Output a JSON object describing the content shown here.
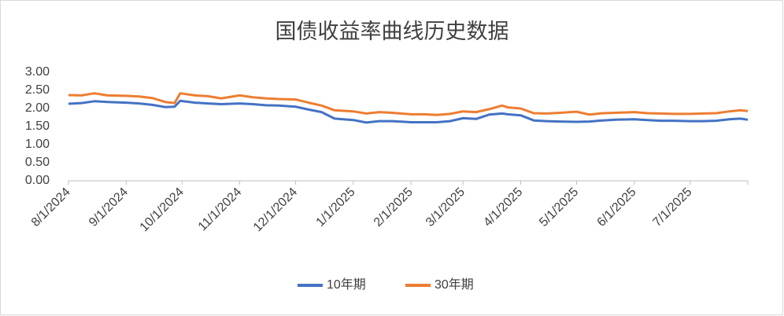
{
  "chart_data": {
    "type": "line",
    "title": "国债收益率曲线历史数据",
    "x": [
      "8/1/2024",
      "8/8/2024",
      "8/15/2024",
      "8/22/2024",
      "9/1/2024",
      "9/8/2024",
      "9/15/2024",
      "9/22/2024",
      "9/27/2024",
      "9/30/2024",
      "10/8/2024",
      "10/15/2024",
      "10/22/2024",
      "11/1/2024",
      "11/8/2024",
      "11/15/2024",
      "11/22/2024",
      "12/1/2024",
      "12/8/2024",
      "12/15/2024",
      "12/22/2024",
      "1/1/2025",
      "1/8/2025",
      "1/15/2025",
      "1/22/2025",
      "2/1/2025",
      "2/8/2025",
      "2/15/2025",
      "2/22/2025",
      "3/1/2025",
      "3/8/2025",
      "3/15/2025",
      "3/22/2025",
      "3/25/2025",
      "4/1/2025",
      "4/8/2025",
      "4/15/2025",
      "4/22/2025",
      "5/1/2025",
      "5/8/2025",
      "5/15/2025",
      "5/22/2025",
      "6/1/2025",
      "6/8/2025",
      "6/15/2025",
      "6/22/2025",
      "7/1/2025",
      "7/8/2025",
      "7/15/2025",
      "7/22/2025",
      "7/28/2025",
      "8/1/2025"
    ],
    "series": [
      {
        "name": "10年期",
        "color": "#4472c4",
        "values": [
          2.13,
          2.15,
          2.2,
          2.18,
          2.16,
          2.14,
          2.1,
          2.04,
          2.05,
          2.21,
          2.16,
          2.14,
          2.12,
          2.14,
          2.12,
          2.09,
          2.08,
          2.05,
          1.97,
          1.9,
          1.72,
          1.68,
          1.61,
          1.65,
          1.65,
          1.62,
          1.62,
          1.62,
          1.65,
          1.73,
          1.71,
          1.83,
          1.86,
          1.84,
          1.81,
          1.67,
          1.65,
          1.64,
          1.63,
          1.64,
          1.67,
          1.69,
          1.7,
          1.68,
          1.66,
          1.66,
          1.65,
          1.65,
          1.66,
          1.7,
          1.72,
          1.69
        ]
      },
      {
        "name": "30年期",
        "color": "#ed7d31",
        "values": [
          2.37,
          2.36,
          2.42,
          2.36,
          2.35,
          2.33,
          2.29,
          2.18,
          2.15,
          2.42,
          2.36,
          2.34,
          2.28,
          2.36,
          2.31,
          2.28,
          2.26,
          2.25,
          2.16,
          2.08,
          1.95,
          1.92,
          1.86,
          1.9,
          1.88,
          1.84,
          1.84,
          1.82,
          1.85,
          1.92,
          1.9,
          1.98,
          2.08,
          2.03,
          2.0,
          1.87,
          1.86,
          1.88,
          1.91,
          1.83,
          1.87,
          1.88,
          1.9,
          1.87,
          1.86,
          1.85,
          1.85,
          1.86,
          1.87,
          1.92,
          1.95,
          1.93
        ]
      }
    ],
    "xlim": [
      "8/1/2024",
      "8/1/2025"
    ],
    "xticks": [
      "8/1/2024",
      "9/1/2024",
      "10/1/2024",
      "11/1/2024",
      "12/1/2024",
      "1/1/2025",
      "2/1/2025",
      "3/1/2025",
      "4/1/2025",
      "5/1/2025",
      "6/1/2025",
      "7/1/2025"
    ],
    "ylim": [
      0,
      3
    ],
    "yticks": [
      {
        "value": 0,
        "label": "0.00"
      },
      {
        "value": 0.5,
        "label": "0.50"
      },
      {
        "value": 1,
        "label": "1.00"
      },
      {
        "value": 1.5,
        "label": "1.50"
      },
      {
        "value": 2,
        "label": "2.00"
      },
      {
        "value": 2.5,
        "label": "2.50"
      },
      {
        "value": 3,
        "label": "3.00"
      }
    ],
    "grid": false,
    "legend": "bottom"
  }
}
